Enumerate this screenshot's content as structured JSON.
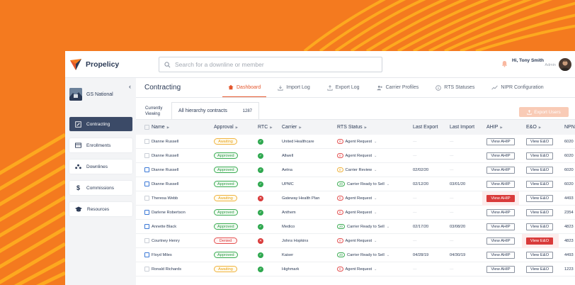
{
  "app": {
    "brand": "Propelicy",
    "search_placeholder": "Search for a downline or member",
    "user": {
      "name": "Hi, Tony Smith",
      "role": "Admin"
    }
  },
  "sidebar": {
    "org_name": "GS National",
    "items": [
      {
        "label": "Contracting",
        "icon": "edit-icon",
        "active": true
      },
      {
        "label": "Enrollments",
        "icon": "card-icon",
        "active": false
      },
      {
        "label": "Downlines",
        "icon": "hierarchy-icon",
        "active": false
      },
      {
        "label": "Commissions",
        "icon": "dollar-icon",
        "active": false
      },
      {
        "label": "Resources",
        "icon": "graduation-cap-icon",
        "active": false
      }
    ]
  },
  "main": {
    "title": "Contracting",
    "tabs": [
      {
        "label": "Dashboard",
        "icon": "home-icon",
        "active": true
      },
      {
        "label": "Import Log",
        "icon": "import-icon",
        "active": false
      },
      {
        "label": "Export Log",
        "icon": "export-icon",
        "active": false
      },
      {
        "label": "Carrier Profiles",
        "icon": "users-icon",
        "active": false
      },
      {
        "label": "RTS Statuses",
        "icon": "info-icon",
        "active": false
      },
      {
        "label": "NIPR Configuration",
        "icon": "trend-icon",
        "active": false
      }
    ],
    "currently_viewing_label": "Currently Viewing",
    "hierarchy_label": "All hierarchy contracts",
    "hierarchy_count": "1287",
    "export_label": "Export Users"
  },
  "table": {
    "headers": {
      "name": "Name",
      "approval": "Approval",
      "rtc": "RTC",
      "carrier": "Carrier",
      "rts_status": "RTS Status",
      "last_export": "Last Export",
      "last_import": "Last Import",
      "ahip": "AHIP",
      "eo": "E&O",
      "npn": "NPN"
    },
    "view_ahip": "View AHIP",
    "view_eo": "View E&O",
    "rows": [
      {
        "name": "Dianne Russell",
        "checked": false,
        "approval": "Awaiting",
        "approval_kind": "awaiting",
        "rtc": "ok",
        "carrier": "United Healthcare",
        "rts_badge": "0",
        "rts_kind": "red",
        "rts_text": "Agent Request",
        "last_export": "---",
        "last_import": "---",
        "ahip_alert": false,
        "eo_alert": false,
        "npn": "6020"
      },
      {
        "name": "Dianne Russell",
        "checked": false,
        "approval": "Approved",
        "approval_kind": "approved",
        "rtc": "ok",
        "carrier": "Allwell",
        "rts_badge": "0",
        "rts_kind": "red",
        "rts_text": "Agent Request",
        "last_export": "---",
        "last_import": "---",
        "ahip_alert": false,
        "eo_alert": false,
        "npn": "6020"
      },
      {
        "name": "Dianne Russell",
        "checked": true,
        "approval": "Approved",
        "approval_kind": "approved",
        "rtc": "ok",
        "carrier": "Aetna",
        "rts_badge": "0",
        "rts_kind": "yellow",
        "rts_text": "Carrier Review",
        "last_export": "02/02/20",
        "last_import": "---",
        "ahip_alert": false,
        "eo_alert": false,
        "npn": "6020"
      },
      {
        "name": "Dianne Russell",
        "checked": true,
        "approval": "Approved",
        "approval_kind": "approved",
        "rtc": "ok",
        "carrier": "UPMC",
        "rts_badge": "20",
        "rts_kind": "green",
        "rts_text": "Carrier Ready to Sell",
        "last_export": "02/12/20",
        "last_import": "03/01/20",
        "ahip_alert": false,
        "eo_alert": false,
        "npn": "6020"
      },
      {
        "name": "Theresa Webb",
        "checked": false,
        "approval": "Awaiting",
        "approval_kind": "awaiting",
        "rtc": "x",
        "carrier": "Gateway Health Plan",
        "rts_badge": "0",
        "rts_kind": "red",
        "rts_text": "Agent Request",
        "last_export": "---",
        "last_import": "---",
        "ahip_alert": true,
        "eo_alert": false,
        "npn": "4493"
      },
      {
        "name": "Darlene Robertson",
        "checked": true,
        "approval": "Approved",
        "approval_kind": "approved",
        "rtc": "ok",
        "carrier": "Anthem",
        "rts_badge": "0",
        "rts_kind": "red",
        "rts_text": "Agent Request",
        "last_export": "---",
        "last_import": "---",
        "ahip_alert": false,
        "eo_alert": false,
        "npn": "2354"
      },
      {
        "name": "Annette Black",
        "checked": true,
        "approval": "Approved",
        "approval_kind": "approved",
        "rtc": "ok",
        "carrier": "Medico",
        "rts_badge": "20",
        "rts_kind": "green",
        "rts_text": "Carrier Ready to Sell",
        "last_export": "02/17/20",
        "last_import": "03/08/20",
        "ahip_alert": false,
        "eo_alert": false,
        "npn": "4823"
      },
      {
        "name": "Courtney Henry",
        "checked": false,
        "approval": "Denied",
        "approval_kind": "denied",
        "rtc": "x",
        "carrier": "Johns Hopkins",
        "rts_badge": "0",
        "rts_kind": "red",
        "rts_text": "Agent Request",
        "last_export": "---",
        "last_import": "---",
        "ahip_alert": false,
        "eo_alert": true,
        "npn": "4823"
      },
      {
        "name": "Floyd Miles",
        "checked": true,
        "approval": "Approved",
        "approval_kind": "approved",
        "rtc": "ok",
        "carrier": "Kaiser",
        "rts_badge": "20",
        "rts_kind": "green",
        "rts_text": "Carrier Ready to Sell",
        "last_export": "04/28/19",
        "last_import": "04/30/19",
        "ahip_alert": false,
        "eo_alert": false,
        "npn": "4493"
      },
      {
        "name": "Ronald Richards",
        "checked": false,
        "approval": "Awaiting",
        "approval_kind": "awaiting",
        "rtc": "ok",
        "carrier": "Highmark",
        "rts_badge": "0",
        "rts_kind": "red",
        "rts_text": "Agent Request",
        "last_export": "---",
        "last_import": "---",
        "ahip_alert": false,
        "eo_alert": false,
        "npn": "1223"
      }
    ]
  },
  "colors": {
    "background": "#f47a1f",
    "accent": "#e4572e",
    "nav_active": "#3b4a67"
  }
}
